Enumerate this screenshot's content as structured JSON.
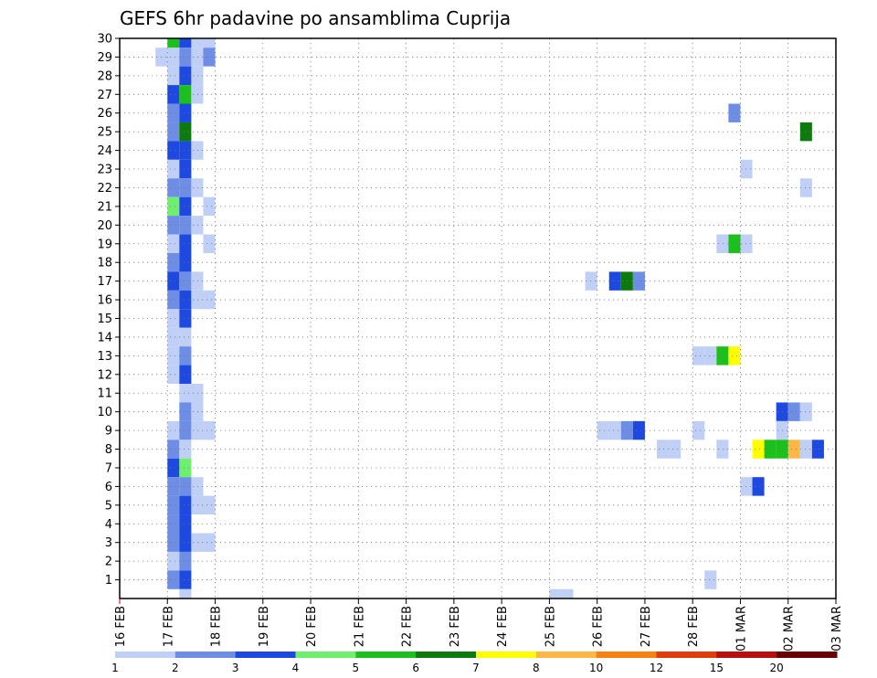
{
  "chart_data": {
    "type": "heatmap",
    "title": "GEFS 6hr padavine po ansamblima Cuprija",
    "xlabel": "",
    "ylabel": "",
    "x_tick_labels": [
      "16 FEB",
      "17 FEB",
      "18 FEB",
      "19 FEB",
      "20 FEB",
      "21 FEB",
      "22 FEB",
      "23 FEB",
      "24 FEB",
      "25 FEB",
      "26 FEB",
      "27 FEB",
      "28 FEB",
      "01 MAR",
      "02 MAR",
      "03 MAR"
    ],
    "y_tick_labels": [
      "1",
      "2",
      "3",
      "4",
      "5",
      "6",
      "7",
      "8",
      "9",
      "10",
      "11",
      "12",
      "13",
      "14",
      "15",
      "16",
      "17",
      "18",
      "19",
      "20",
      "21",
      "22",
      "23",
      "24",
      "25",
      "26",
      "27",
      "28",
      "29",
      "30"
    ],
    "x_range_days": [
      0,
      15
    ],
    "y_range": [
      0,
      30
    ],
    "grid": true,
    "legend": {
      "placement": "bottom",
      "labels": [
        "1",
        "2",
        "3",
        "4",
        "5",
        "6",
        "7",
        "8",
        "10",
        "12",
        "15",
        "20"
      ],
      "colors": [
        "#c0cff5",
        "#6e8ee6",
        "#1e49e0",
        "#6ef06e",
        "#1cc01c",
        "#0d7a0d",
        "#ffff00",
        "#fdb745",
        "#f78211",
        "#e23b0e",
        "#b80e0e",
        "#6a0000"
      ]
    },
    "levels": [
      1,
      2,
      3,
      4,
      5,
      6,
      7,
      8,
      10,
      12,
      15,
      20
    ],
    "cells": [
      {
        "ens": 30,
        "t": 1.0,
        "v": 5
      },
      {
        "ens": 30,
        "t": 1.25,
        "v": 3
      },
      {
        "ens": 30,
        "t": 1.5,
        "v": 1
      },
      {
        "ens": 30,
        "t": 1.75,
        "v": 1
      },
      {
        "ens": 29,
        "t": 0.75,
        "v": 1
      },
      {
        "ens": 29,
        "t": 1.0,
        "v": 1
      },
      {
        "ens": 29,
        "t": 1.25,
        "v": 2
      },
      {
        "ens": 29,
        "t": 1.5,
        "v": 1
      },
      {
        "ens": 29,
        "t": 1.75,
        "v": 2
      },
      {
        "ens": 28,
        "t": 1.0,
        "v": 1
      },
      {
        "ens": 28,
        "t": 1.25,
        "v": 3
      },
      {
        "ens": 28,
        "t": 1.5,
        "v": 1
      },
      {
        "ens": 27,
        "t": 1.0,
        "v": 3
      },
      {
        "ens": 27,
        "t": 1.25,
        "v": 5
      },
      {
        "ens": 27,
        "t": 1.5,
        "v": 1
      },
      {
        "ens": 26,
        "t": 1.0,
        "v": 2
      },
      {
        "ens": 26,
        "t": 1.25,
        "v": 3
      },
      {
        "ens": 26,
        "t": 12.75,
        "v": 2
      },
      {
        "ens": 25,
        "t": 1.0,
        "v": 2
      },
      {
        "ens": 25,
        "t": 1.25,
        "v": 6
      },
      {
        "ens": 25,
        "t": 14.25,
        "v": 6
      },
      {
        "ens": 24,
        "t": 1.0,
        "v": 3
      },
      {
        "ens": 24,
        "t": 1.25,
        "v": 3
      },
      {
        "ens": 24,
        "t": 1.5,
        "v": 1
      },
      {
        "ens": 23,
        "t": 1.0,
        "v": 1
      },
      {
        "ens": 23,
        "t": 1.25,
        "v": 3
      },
      {
        "ens": 23,
        "t": 13.0,
        "v": 1
      },
      {
        "ens": 22,
        "t": 1.0,
        "v": 2
      },
      {
        "ens": 22,
        "t": 1.25,
        "v": 2
      },
      {
        "ens": 22,
        "t": 1.5,
        "v": 1
      },
      {
        "ens": 22,
        "t": 14.25,
        "v": 1
      },
      {
        "ens": 21,
        "t": 1.0,
        "v": 4
      },
      {
        "ens": 21,
        "t": 1.25,
        "v": 3
      },
      {
        "ens": 21,
        "t": 1.75,
        "v": 1
      },
      {
        "ens": 20,
        "t": 1.0,
        "v": 2
      },
      {
        "ens": 20,
        "t": 1.25,
        "v": 2
      },
      {
        "ens": 20,
        "t": 1.5,
        "v": 1
      },
      {
        "ens": 19,
        "t": 1.0,
        "v": 1
      },
      {
        "ens": 19,
        "t": 1.25,
        "v": 3
      },
      {
        "ens": 19,
        "t": 1.75,
        "v": 1
      },
      {
        "ens": 19,
        "t": 12.5,
        "v": 1
      },
      {
        "ens": 19,
        "t": 12.75,
        "v": 5
      },
      {
        "ens": 19,
        "t": 13.0,
        "v": 1
      },
      {
        "ens": 18,
        "t": 1.0,
        "v": 2
      },
      {
        "ens": 18,
        "t": 1.25,
        "v": 3
      },
      {
        "ens": 17,
        "t": 1.0,
        "v": 3
      },
      {
        "ens": 17,
        "t": 1.25,
        "v": 2
      },
      {
        "ens": 17,
        "t": 1.5,
        "v": 1
      },
      {
        "ens": 17,
        "t": 9.75,
        "v": 1
      },
      {
        "ens": 17,
        "t": 10.25,
        "v": 3
      },
      {
        "ens": 17,
        "t": 10.5,
        "v": 6
      },
      {
        "ens": 17,
        "t": 10.75,
        "v": 2
      },
      {
        "ens": 17,
        "t": 15.0,
        "v": 10
      },
      {
        "ens": 16,
        "t": 1.0,
        "v": 2
      },
      {
        "ens": 16,
        "t": 1.25,
        "v": 3
      },
      {
        "ens": 16,
        "t": 1.5,
        "v": 1
      },
      {
        "ens": 16,
        "t": 1.75,
        "v": 1
      },
      {
        "ens": 15,
        "t": 1.0,
        "v": 1
      },
      {
        "ens": 15,
        "t": 1.25,
        "v": 3
      },
      {
        "ens": 14,
        "t": 1.0,
        "v": 1
      },
      {
        "ens": 14,
        "t": 1.25,
        "v": 1
      },
      {
        "ens": 13,
        "t": 1.0,
        "v": 1
      },
      {
        "ens": 13,
        "t": 1.25,
        "v": 2
      },
      {
        "ens": 13,
        "t": 12.0,
        "v": 1
      },
      {
        "ens": 13,
        "t": 12.25,
        "v": 1
      },
      {
        "ens": 13,
        "t": 12.5,
        "v": 5
      },
      {
        "ens": 13,
        "t": 12.75,
        "v": 7
      },
      {
        "ens": 12,
        "t": 1.0,
        "v": 1
      },
      {
        "ens": 12,
        "t": 1.25,
        "v": 3
      },
      {
        "ens": 11,
        "t": 1.25,
        "v": 1
      },
      {
        "ens": 11,
        "t": 1.5,
        "v": 1
      },
      {
        "ens": 10,
        "t": 1.25,
        "v": 2
      },
      {
        "ens": 10,
        "t": 1.5,
        "v": 1
      },
      {
        "ens": 10,
        "t": 13.75,
        "v": 3
      },
      {
        "ens": 10,
        "t": 14.0,
        "v": 2
      },
      {
        "ens": 10,
        "t": 14.25,
        "v": 1
      },
      {
        "ens": 9,
        "t": 1.0,
        "v": 1
      },
      {
        "ens": 9,
        "t": 1.25,
        "v": 2
      },
      {
        "ens": 9,
        "t": 1.5,
        "v": 1
      },
      {
        "ens": 9,
        "t": 1.75,
        "v": 1
      },
      {
        "ens": 9,
        "t": 10.0,
        "v": 1
      },
      {
        "ens": 9,
        "t": 10.25,
        "v": 1
      },
      {
        "ens": 9,
        "t": 10.5,
        "v": 2
      },
      {
        "ens": 9,
        "t": 10.75,
        "v": 3
      },
      {
        "ens": 9,
        "t": 12.0,
        "v": 1
      },
      {
        "ens": 9,
        "t": 13.75,
        "v": 1
      },
      {
        "ens": 8,
        "t": 1.0,
        "v": 2
      },
      {
        "ens": 8,
        "t": 1.25,
        "v": 1
      },
      {
        "ens": 8,
        "t": 11.25,
        "v": 1
      },
      {
        "ens": 8,
        "t": 11.5,
        "v": 1
      },
      {
        "ens": 8,
        "t": 12.5,
        "v": 1
      },
      {
        "ens": 8,
        "t": 13.25,
        "v": 7
      },
      {
        "ens": 8,
        "t": 13.5,
        "v": 5
      },
      {
        "ens": 8,
        "t": 13.75,
        "v": 5
      },
      {
        "ens": 8,
        "t": 14.0,
        "v": 8
      },
      {
        "ens": 8,
        "t": 14.25,
        "v": 1
      },
      {
        "ens": 8,
        "t": 14.5,
        "v": 3
      },
      {
        "ens": 7,
        "t": 1.0,
        "v": 3
      },
      {
        "ens": 7,
        "t": 1.25,
        "v": 4
      },
      {
        "ens": 6,
        "t": 1.0,
        "v": 2
      },
      {
        "ens": 6,
        "t": 1.25,
        "v": 2
      },
      {
        "ens": 6,
        "t": 1.5,
        "v": 1
      },
      {
        "ens": 6,
        "t": 13.0,
        "v": 1
      },
      {
        "ens": 6,
        "t": 13.25,
        "v": 3
      },
      {
        "ens": 5,
        "t": 1.0,
        "v": 2
      },
      {
        "ens": 5,
        "t": 1.25,
        "v": 3
      },
      {
        "ens": 5,
        "t": 1.5,
        "v": 1
      },
      {
        "ens": 5,
        "t": 1.75,
        "v": 1
      },
      {
        "ens": 4,
        "t": 1.0,
        "v": 2
      },
      {
        "ens": 4,
        "t": 1.25,
        "v": 3
      },
      {
        "ens": 3,
        "t": 1.0,
        "v": 2
      },
      {
        "ens": 3,
        "t": 1.25,
        "v": 3
      },
      {
        "ens": 3,
        "t": 1.5,
        "v": 1
      },
      {
        "ens": 3,
        "t": 1.75,
        "v": 1
      },
      {
        "ens": 3,
        "t": 15.0,
        "v": 2
      },
      {
        "ens": 2,
        "t": 1.0,
        "v": 1
      },
      {
        "ens": 2,
        "t": 1.25,
        "v": 2
      },
      {
        "ens": 1,
        "t": 1.0,
        "v": 2
      },
      {
        "ens": 1,
        "t": 1.25,
        "v": 3
      },
      {
        "ens": 1,
        "t": 12.25,
        "v": 1
      },
      {
        "ens": 0,
        "t": 1.25,
        "v": 1
      },
      {
        "ens": 0,
        "t": 9.0,
        "v": 1
      },
      {
        "ens": 0,
        "t": 9.25,
        "v": 1
      }
    ]
  }
}
